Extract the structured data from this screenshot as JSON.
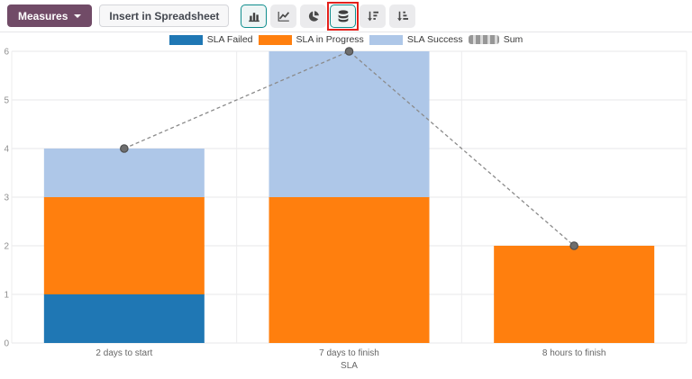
{
  "toolbar": {
    "measures_label": "Measures",
    "insert_spreadsheet_label": "Insert in Spreadsheet",
    "view_buttons": [
      {
        "icon": "bar-chart-icon",
        "active": true,
        "annotated": false
      },
      {
        "icon": "line-chart-icon",
        "active": false,
        "annotated": false
      },
      {
        "icon": "pie-chart-icon",
        "active": false,
        "annotated": false
      },
      {
        "icon": "stacked-database-icon",
        "active": true,
        "annotated": true
      },
      {
        "icon": "sort-descending-icon",
        "active": false,
        "annotated": false
      },
      {
        "icon": "sort-ascending-icon",
        "active": false,
        "annotated": false
      }
    ],
    "active_border_color": "#0e8d8d",
    "annotation_color": "#e3211c",
    "measures_button_color": "#714b67"
  },
  "chart_data": {
    "type": "bar",
    "stacked": true,
    "title": "",
    "categories": [
      "2 days to start",
      "7 days to finish",
      "8 hours to finish"
    ],
    "series": [
      {
        "name": "SLA Failed",
        "color": "#1f77b4",
        "values": [
          1,
          0,
          0
        ]
      },
      {
        "name": "SLA in Progress",
        "color": "#ff7f0e",
        "values": [
          2,
          3,
          2
        ]
      },
      {
        "name": "SLA Success",
        "color": "#aec7e8",
        "values": [
          1,
          3,
          0
        ]
      }
    ],
    "line_series": {
      "name": "Sum",
      "color": "#8b8b8b",
      "style": "dashed",
      "values": [
        4,
        6,
        2
      ]
    },
    "xlabel": "SLA",
    "ylabel": "",
    "ylim": [
      0,
      6
    ],
    "yticks": [
      0,
      1,
      2,
      3,
      4,
      5,
      6
    ],
    "grid": true,
    "legend_position": "top",
    "marker_color": "#6e6e6e"
  }
}
